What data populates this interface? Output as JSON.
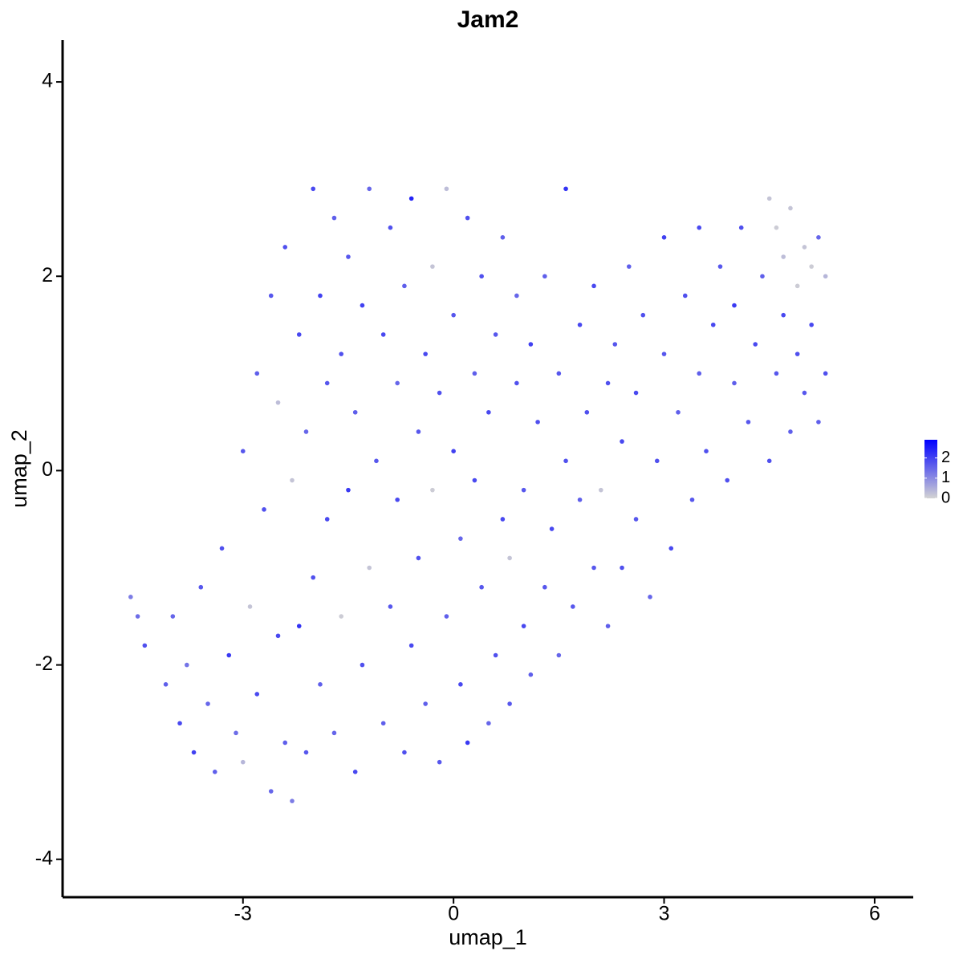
{
  "chart_data": {
    "type": "scatter",
    "title": "Jam2",
    "xlabel": "umap_1",
    "ylabel": "umap_2",
    "xlim": [
      -5.57,
      6.55
    ],
    "ylim": [
      -4.39,
      4.43
    ],
    "xticks": [
      -3,
      0,
      3,
      6
    ],
    "yticks": [
      -4,
      -2,
      0,
      2,
      4
    ],
    "low_color": "#d3d3d3",
    "high_color": "#0000ff",
    "clim": [
      0,
      2.9
    ],
    "cticks": [
      0,
      1,
      2
    ],
    "x": [
      -4.6,
      -4.5,
      -4.4,
      -4.1,
      -4.0,
      -3.9,
      -3.8,
      -3.7,
      -3.6,
      -3.5,
      -3.4,
      -3.3,
      -3.2,
      -3.1,
      -3.0,
      -3.0,
      -2.9,
      -2.8,
      -2.8,
      -2.7,
      -2.6,
      -2.6,
      -2.5,
      -2.5,
      -2.4,
      -2.4,
      -2.3,
      -2.3,
      -2.2,
      -2.2,
      -2.1,
      -2.1,
      -2.0,
      -2.0,
      -1.9,
      -1.9,
      -1.8,
      -1.8,
      -1.7,
      -1.7,
      -1.6,
      -1.6,
      -1.5,
      -1.5,
      -1.4,
      -1.4,
      -1.3,
      -1.3,
      -1.2,
      -1.2,
      -1.1,
      -1.0,
      -1.0,
      -0.9,
      -0.9,
      -0.8,
      -0.8,
      -0.7,
      -0.7,
      -0.6,
      -0.6,
      -0.5,
      -0.5,
      -0.4,
      -0.4,
      -0.3,
      -0.3,
      -0.2,
      -0.2,
      -0.1,
      -0.1,
      0.0,
      0.0,
      0.1,
      0.1,
      0.2,
      0.2,
      0.3,
      0.3,
      0.4,
      0.4,
      0.5,
      0.5,
      0.6,
      0.6,
      0.7,
      0.7,
      0.8,
      0.8,
      0.9,
      0.9,
      1.0,
      1.0,
      1.1,
      1.1,
      1.2,
      1.3,
      1.3,
      1.4,
      1.5,
      1.5,
      1.6,
      1.6,
      1.7,
      1.8,
      1.8,
      1.9,
      2.0,
      2.0,
      2.1,
      2.2,
      2.2,
      2.3,
      2.4,
      2.4,
      2.5,
      2.6,
      2.6,
      2.7,
      2.8,
      2.9,
      3.0,
      3.0,
      3.1,
      3.2,
      3.3,
      3.4,
      3.5,
      3.5,
      3.6,
      3.7,
      3.8,
      3.9,
      4.0,
      4.0,
      4.1,
      4.2,
      4.3,
      4.4,
      4.5,
      4.5,
      4.6,
      4.6,
      4.7,
      4.7,
      4.8,
      4.8,
      4.9,
      4.9,
      5.0,
      5.0,
      5.1,
      5.1,
      5.2,
      5.2,
      5.3,
      5.3
    ],
    "y": [
      -1.3,
      -1.5,
      -1.8,
      -2.2,
      -1.5,
      -2.6,
      -2.0,
      -2.9,
      -1.2,
      -2.4,
      -3.1,
      -0.8,
      -1.9,
      -2.7,
      -3.0,
      0.2,
      -1.4,
      -2.3,
      1.0,
      -0.4,
      -3.3,
      1.8,
      -1.7,
      0.7,
      -2.8,
      2.3,
      -3.4,
      -0.1,
      -1.6,
      1.4,
      -2.9,
      0.4,
      2.9,
      -1.1,
      -2.2,
      1.8,
      0.9,
      -0.5,
      2.6,
      -2.7,
      -1.5,
      1.2,
      -0.2,
      2.2,
      -3.1,
      0.6,
      -2.0,
      1.7,
      2.9,
      -1.0,
      0.1,
      -2.6,
      1.4,
      2.5,
      -1.4,
      -0.3,
      0.9,
      -2.9,
      1.9,
      -1.8,
      2.8,
      0.4,
      -0.9,
      -2.4,
      1.2,
      2.1,
      -0.2,
      -3.0,
      0.8,
      2.9,
      -1.5,
      0.2,
      1.6,
      -2.2,
      -0.7,
      2.6,
      -2.8,
      1.0,
      -0.1,
      -1.2,
      2.0,
      -2.6,
      0.6,
      1.4,
      -1.9,
      2.4,
      -0.5,
      -0.9,
      -2.4,
      0.9,
      1.8,
      -1.6,
      -0.2,
      1.3,
      -2.1,
      0.5,
      -1.2,
      2.0,
      -0.6,
      1.0,
      -1.9,
      2.9,
      0.1,
      -1.4,
      1.5,
      -0.3,
      0.6,
      -1.0,
      1.9,
      -0.2,
      0.9,
      -1.6,
      1.3,
      0.3,
      -1.0,
      2.1,
      -0.5,
      0.8,
      1.6,
      -1.3,
      0.1,
      1.2,
      2.4,
      -0.8,
      0.6,
      1.8,
      -0.3,
      2.5,
      1.0,
      0.2,
      1.5,
      2.1,
      -0.1,
      0.9,
      1.7,
      2.5,
      0.5,
      1.3,
      2.0,
      0.1,
      2.8,
      1.0,
      2.5,
      1.6,
      2.2,
      0.4,
      2.7,
      1.9,
      1.2,
      2.3,
      0.8,
      1.5,
      2.1,
      0.5,
      2.4,
      1.0,
      2.0
    ],
    "expression": [
      1.2,
      1.4,
      1.8,
      1.6,
      1.5,
      1.9,
      1.3,
      2.0,
      1.7,
      1.5,
      1.6,
      1.8,
      2.1,
      1.4,
      0.4,
      1.7,
      0.2,
      1.9,
      1.6,
      1.8,
      1.5,
      1.7,
      1.9,
      0.3,
      1.6,
      1.8,
      1.2,
      0.2,
      2.2,
      1.9,
      1.7,
      1.5,
      1.9,
      1.8,
      1.6,
      2.0,
      1.7,
      1.9,
      1.6,
      1.5,
      0.1,
      1.8,
      2.1,
      1.7,
      1.9,
      1.6,
      1.8,
      2.0,
      1.5,
      0.2,
      1.7,
      1.6,
      1.9,
      1.8,
      1.7,
      1.9,
      1.5,
      1.8,
      1.6,
      1.9,
      2.4,
      1.7,
      1.8,
      1.6,
      1.9,
      0.2,
      0.1,
      1.7,
      1.8,
      0.3,
      1.6,
      2.0,
      1.7,
      1.9,
      1.5,
      1.8,
      2.1,
      1.6,
      1.9,
      1.7,
      1.8,
      1.5,
      1.9,
      1.7,
      1.8,
      1.6,
      1.9,
      0.2,
      1.7,
      1.8,
      1.5,
      1.9,
      1.7,
      2.0,
      1.6,
      1.8,
      1.7,
      1.6,
      1.9,
      1.7,
      1.5,
      2.2,
      1.8,
      1.7,
      1.9,
      1.6,
      1.8,
      1.7,
      1.9,
      0.2,
      1.8,
      1.6,
      1.7,
      1.9,
      1.8,
      1.6,
      1.7,
      1.9,
      1.8,
      1.5,
      1.8,
      1.7,
      2.0,
      1.9,
      1.6,
      1.8,
      1.7,
      1.9,
      1.6,
      1.8,
      1.9,
      1.7,
      1.8,
      1.6,
      2.1,
      1.8,
      1.7,
      1.9,
      1.6,
      1.8,
      0.2,
      1.7,
      0.1,
      1.9,
      0.3,
      1.6,
      0.2,
      0.1,
      1.8,
      0.2,
      1.7,
      1.9,
      0.1,
      1.6,
      1.5,
      1.8,
      0.4
    ]
  }
}
